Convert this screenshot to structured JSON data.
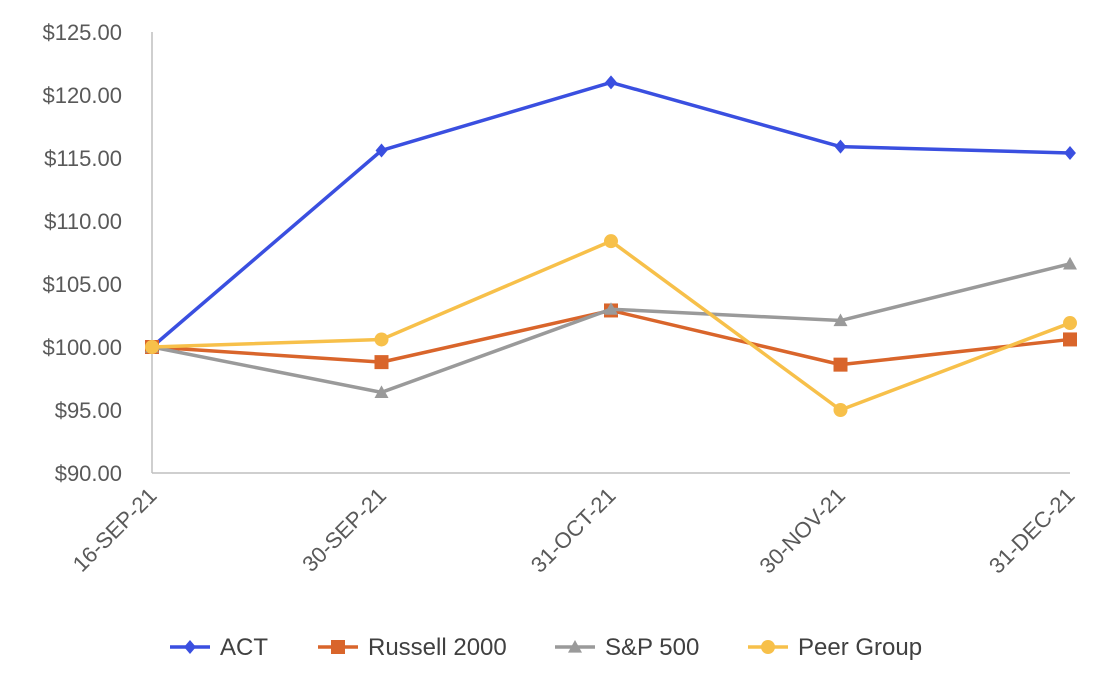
{
  "chart_data": {
    "type": "line",
    "title": "",
    "xlabel": "",
    "ylabel": "",
    "categories": [
      "16-SEP-21",
      "30-SEP-21",
      "31-OCT-21",
      "30-NOV-21",
      "31-DEC-21"
    ],
    "ylim": [
      90,
      125
    ],
    "yticks": [
      90,
      95,
      100,
      105,
      110,
      115,
      120,
      125
    ],
    "ytick_labels": [
      "$90.00",
      "$95.00",
      "$100.00",
      "$105.00",
      "$110.00",
      "$115.00",
      "$120.00",
      "$125.00"
    ],
    "grid": false,
    "legend_position": "bottom",
    "series": [
      {
        "name": "ACT",
        "color": "#3A4FE0",
        "marker": "diamond",
        "values": [
          100.0,
          115.6,
          121.0,
          115.9,
          115.4
        ]
      },
      {
        "name": "Russell 2000",
        "color": "#D9652B",
        "marker": "square",
        "values": [
          100.0,
          98.8,
          102.9,
          98.6,
          100.6
        ]
      },
      {
        "name": "S&P 500",
        "color": "#9A9A9A",
        "marker": "triangle",
        "values": [
          100.0,
          96.4,
          103.0,
          102.1,
          106.6
        ]
      },
      {
        "name": "Peer Group",
        "color": "#F7C04A",
        "marker": "circle",
        "values": [
          100.0,
          100.6,
          108.4,
          95.0,
          101.9
        ]
      }
    ]
  }
}
